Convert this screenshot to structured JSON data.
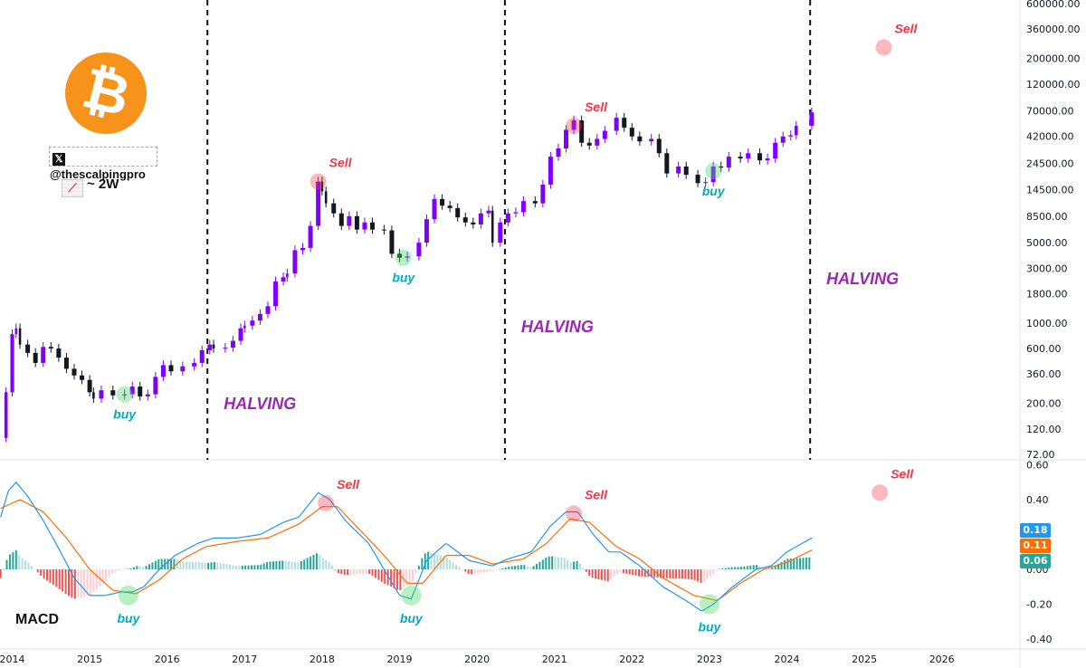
{
  "branding": {
    "logo": "bitcoin-logo",
    "handle": "@thescalpingpro",
    "timeframe": "~ 2W",
    "indicator": "MACD"
  },
  "colors": {
    "up": "#8000ff",
    "down": "#131722",
    "macd": "#2196f3",
    "signal": "#ff6d00",
    "hist_pos": "#26a69a",
    "hist_pos_light": "#b2dfdb",
    "hist_neg": "#ef5350",
    "hist_neg_light": "#ffcdd2",
    "sell": "#f23645",
    "buy": "#00acc1",
    "halving": "#9c27b0"
  },
  "chart_data": {
    "type": "candlestick",
    "scale": "log",
    "x_ticks": [
      "2014",
      "2015",
      "2016",
      "2017",
      "2018",
      "2019",
      "2020",
      "2021",
      "2022",
      "2023",
      "2024",
      "2025",
      "2026"
    ],
    "x_range": [
      2013.84,
      2026.8
    ],
    "price_ticks": [
      "600000.00",
      "360000.00",
      "200000.00",
      "120000.00",
      "70000.00",
      "42000.00",
      "24500.00",
      "14500.00",
      "8500.00",
      "5000.00",
      "3000.00",
      "1800.00",
      "1000.00",
      "600.00",
      "360.00",
      "200.00",
      "120.00",
      "72.00"
    ],
    "price_range": [
      72,
      600000
    ],
    "price_closes": [
      [
        2013.85,
        100
      ],
      [
        2013.92,
        250
      ],
      [
        2014.0,
        800
      ],
      [
        2014.05,
        900
      ],
      [
        2014.1,
        650
      ],
      [
        2014.2,
        550
      ],
      [
        2014.3,
        450
      ],
      [
        2014.4,
        620
      ],
      [
        2014.5,
        600
      ],
      [
        2014.6,
        500
      ],
      [
        2014.7,
        400
      ],
      [
        2014.8,
        350
      ],
      [
        2014.9,
        320
      ],
      [
        2015.0,
        250
      ],
      [
        2015.05,
        220
      ],
      [
        2015.15,
        260
      ],
      [
        2015.3,
        235
      ],
      [
        2015.45,
        240
      ],
      [
        2015.55,
        280
      ],
      [
        2015.65,
        230
      ],
      [
        2015.75,
        240
      ],
      [
        2015.85,
        340
      ],
      [
        2015.95,
        430
      ],
      [
        2016.05,
        380
      ],
      [
        2016.2,
        420
      ],
      [
        2016.35,
        450
      ],
      [
        2016.45,
        580
      ],
      [
        2016.55,
        650
      ],
      [
        2016.6,
        600
      ],
      [
        2016.75,
        610
      ],
      [
        2016.85,
        700
      ],
      [
        2016.95,
        900
      ],
      [
        2017.0,
        950
      ],
      [
        2017.1,
        1050
      ],
      [
        2017.2,
        1200
      ],
      [
        2017.3,
        1400
      ],
      [
        2017.4,
        2300
      ],
      [
        2017.5,
        2500
      ],
      [
        2017.55,
        2700
      ],
      [
        2017.65,
        4300
      ],
      [
        2017.75,
        4500
      ],
      [
        2017.85,
        7000
      ],
      [
        2017.95,
        17000
      ],
      [
        2018.0,
        14000
      ],
      [
        2018.05,
        11000
      ],
      [
        2018.15,
        9000
      ],
      [
        2018.25,
        7000
      ],
      [
        2018.35,
        8500
      ],
      [
        2018.45,
        6500
      ],
      [
        2018.55,
        7500
      ],
      [
        2018.65,
        6500
      ],
      [
        2018.8,
        6400
      ],
      [
        2018.9,
        4000
      ],
      [
        2019.0,
        3700
      ],
      [
        2019.1,
        3800
      ],
      [
        2019.25,
        5000
      ],
      [
        2019.35,
        8000
      ],
      [
        2019.45,
        12000
      ],
      [
        2019.55,
        10500
      ],
      [
        2019.65,
        10000
      ],
      [
        2019.75,
        8300
      ],
      [
        2019.85,
        7500
      ],
      [
        2019.95,
        7200
      ],
      [
        2020.05,
        9000
      ],
      [
        2020.15,
        9500
      ],
      [
        2020.2,
        5000
      ],
      [
        2020.3,
        7500
      ],
      [
        2020.4,
        9000
      ],
      [
        2020.5,
        9200
      ],
      [
        2020.6,
        11500
      ],
      [
        2020.75,
        11000
      ],
      [
        2020.85,
        16000
      ],
      [
        2020.95,
        28000
      ],
      [
        2021.05,
        33000
      ],
      [
        2021.15,
        48000
      ],
      [
        2021.25,
        58000
      ],
      [
        2021.35,
        37000
      ],
      [
        2021.45,
        35000
      ],
      [
        2021.55,
        40000
      ],
      [
        2021.65,
        47000
      ],
      [
        2021.8,
        61000
      ],
      [
        2021.9,
        50000
      ],
      [
        2022.0,
        42000
      ],
      [
        2022.1,
        38000
      ],
      [
        2022.25,
        40000
      ],
      [
        2022.35,
        30000
      ],
      [
        2022.45,
        20000
      ],
      [
        2022.6,
        23000
      ],
      [
        2022.7,
        19500
      ],
      [
        2022.85,
        16500
      ],
      [
        2022.95,
        16800
      ],
      [
        2023.05,
        23000
      ],
      [
        2023.15,
        22500
      ],
      [
        2023.25,
        28000
      ],
      [
        2023.4,
        27000
      ],
      [
        2023.5,
        30000
      ],
      [
        2023.65,
        26000
      ],
      [
        2023.75,
        27000
      ],
      [
        2023.85,
        37000
      ],
      [
        2023.95,
        42000
      ],
      [
        2024.05,
        43000
      ],
      [
        2024.12,
        52000
      ],
      [
        2024.32,
        68000
      ]
    ],
    "macd_ticks": [
      "0.60",
      "0.40",
      "-0.20",
      "-0.40"
    ],
    "macd_zero_label": "0.00",
    "macd_range": [
      -0.45,
      0.63
    ],
    "macd": [
      [
        2013.85,
        0.3
      ],
      [
        2013.95,
        0.45
      ],
      [
        2014.05,
        0.5
      ],
      [
        2014.2,
        0.42
      ],
      [
        2014.4,
        0.28
      ],
      [
        2014.6,
        0.12
      ],
      [
        2014.8,
        -0.05
      ],
      [
        2015.0,
        -0.15
      ],
      [
        2015.2,
        -0.15
      ],
      [
        2015.4,
        -0.13
      ],
      [
        2015.55,
        -0.13
      ],
      [
        2015.7,
        -0.1
      ],
      [
        2015.9,
        0.0
      ],
      [
        2016.1,
        0.08
      ],
      [
        2016.4,
        0.15
      ],
      [
        2016.6,
        0.18
      ],
      [
        2016.9,
        0.18
      ],
      [
        2017.2,
        0.2
      ],
      [
        2017.5,
        0.27
      ],
      [
        2017.7,
        0.3
      ],
      [
        2017.95,
        0.44
      ],
      [
        2018.1,
        0.4
      ],
      [
        2018.3,
        0.28
      ],
      [
        2018.6,
        0.15
      ],
      [
        2018.8,
        0.0
      ],
      [
        2019.0,
        -0.15
      ],
      [
        2019.15,
        -0.17
      ],
      [
        2019.35,
        0.05
      ],
      [
        2019.6,
        0.15
      ],
      [
        2019.9,
        0.05
      ],
      [
        2020.2,
        0.02
      ],
      [
        2020.4,
        0.06
      ],
      [
        2020.7,
        0.1
      ],
      [
        2020.95,
        0.25
      ],
      [
        2021.15,
        0.33
      ],
      [
        2021.3,
        0.33
      ],
      [
        2021.5,
        0.2
      ],
      [
        2021.7,
        0.1
      ],
      [
        2021.85,
        0.1
      ],
      [
        2022.1,
        0.02
      ],
      [
        2022.4,
        -0.1
      ],
      [
        2022.7,
        -0.18
      ],
      [
        2022.9,
        -0.24
      ],
      [
        2023.05,
        -0.2
      ],
      [
        2023.3,
        -0.1
      ],
      [
        2023.6,
        0.0
      ],
      [
        2023.8,
        0.02
      ],
      [
        2024.0,
        0.1
      ],
      [
        2024.2,
        0.15
      ],
      [
        2024.32,
        0.18
      ]
    ],
    "signal": [
      [
        2013.85,
        0.35
      ],
      [
        2014.1,
        0.4
      ],
      [
        2014.4,
        0.33
      ],
      [
        2014.7,
        0.18
      ],
      [
        2015.0,
        0.0
      ],
      [
        2015.3,
        -0.12
      ],
      [
        2015.6,
        -0.14
      ],
      [
        2015.9,
        -0.06
      ],
      [
        2016.2,
        0.06
      ],
      [
        2016.5,
        0.13
      ],
      [
        2016.9,
        0.16
      ],
      [
        2017.3,
        0.18
      ],
      [
        2017.7,
        0.26
      ],
      [
        2018.0,
        0.36
      ],
      [
        2018.2,
        0.36
      ],
      [
        2018.5,
        0.22
      ],
      [
        2018.8,
        0.08
      ],
      [
        2019.1,
        -0.08
      ],
      [
        2019.3,
        -0.08
      ],
      [
        2019.6,
        0.08
      ],
      [
        2019.9,
        0.08
      ],
      [
        2020.2,
        0.03
      ],
      [
        2020.6,
        0.06
      ],
      [
        2020.9,
        0.15
      ],
      [
        2021.2,
        0.29
      ],
      [
        2021.45,
        0.27
      ],
      [
        2021.8,
        0.13
      ],
      [
        2022.1,
        0.06
      ],
      [
        2022.4,
        -0.05
      ],
      [
        2022.8,
        -0.15
      ],
      [
        2023.1,
        -0.18
      ],
      [
        2023.4,
        -0.08
      ],
      [
        2023.7,
        0.0
      ],
      [
        2024.0,
        0.04
      ],
      [
        2024.32,
        0.11
      ]
    ],
    "last_values": {
      "macd": "0.18",
      "signal": "0.11",
      "histogram": "0.06"
    },
    "halvings": [
      {
        "year": 2016.52,
        "label": "HALVING"
      },
      {
        "year": 2020.36,
        "label": "HALVING"
      },
      {
        "year": 2024.3,
        "label": "HALVING"
      }
    ],
    "price_annotations": [
      {
        "type": "buy",
        "label": "buy",
        "year": 2015.45,
        "price": 240
      },
      {
        "type": "sell",
        "label": "Sell",
        "year": 2017.95,
        "price": 17000
      },
      {
        "type": "buy",
        "label": "buy",
        "year": 2019.05,
        "price": 3700
      },
      {
        "type": "sell",
        "label": "Sell",
        "year": 2021.25,
        "price": 52000
      },
      {
        "type": "buy",
        "label": "buy",
        "year": 2023.05,
        "price": 21000
      },
      {
        "type": "sell",
        "label": "Sell",
        "year": 2025.25,
        "price": 250000
      }
    ],
    "macd_annotations": [
      {
        "type": "buy",
        "label": "buy",
        "year": 2015.5,
        "value": -0.15
      },
      {
        "type": "sell",
        "label": "Sell",
        "year": 2018.05,
        "value": 0.38
      },
      {
        "type": "buy",
        "label": "buy",
        "year": 2019.15,
        "value": -0.15
      },
      {
        "type": "sell",
        "label": "Sell",
        "year": 2021.25,
        "value": 0.32
      },
      {
        "type": "buy",
        "label": "buy",
        "year": 2023.0,
        "value": -0.2
      },
      {
        "type": "sell",
        "label": "Sell",
        "year": 2025.2,
        "value": 0.44
      }
    ]
  }
}
